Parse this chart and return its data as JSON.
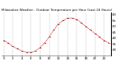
{
  "title": "Milwaukee Weather - Outdoor Temperature per Hour (Last 24 Hours)",
  "hours": [
    0,
    1,
    2,
    3,
    4,
    5,
    6,
    7,
    8,
    9,
    10,
    11,
    12,
    13,
    14,
    15,
    16,
    17,
    18,
    19,
    20,
    21,
    22,
    23
  ],
  "temps": [
    38,
    36,
    33,
    31,
    29,
    28,
    28,
    29,
    32,
    36,
    41,
    47,
    52,
    55,
    57,
    57,
    56,
    53,
    50,
    47,
    44,
    41,
    38,
    36
  ],
  "line_color": "#ff0000",
  "marker_color": "#000000",
  "bg_color": "#ffffff",
  "grid_color": "#888888",
  "ylim": [
    25,
    62
  ],
  "ytick_vals": [
    30,
    35,
    40,
    45,
    50,
    55,
    60
  ],
  "title_fontsize": 3.0,
  "tick_fontsize": 2.8,
  "fig_width": 1.6,
  "fig_height": 0.87,
  "dpi": 100
}
